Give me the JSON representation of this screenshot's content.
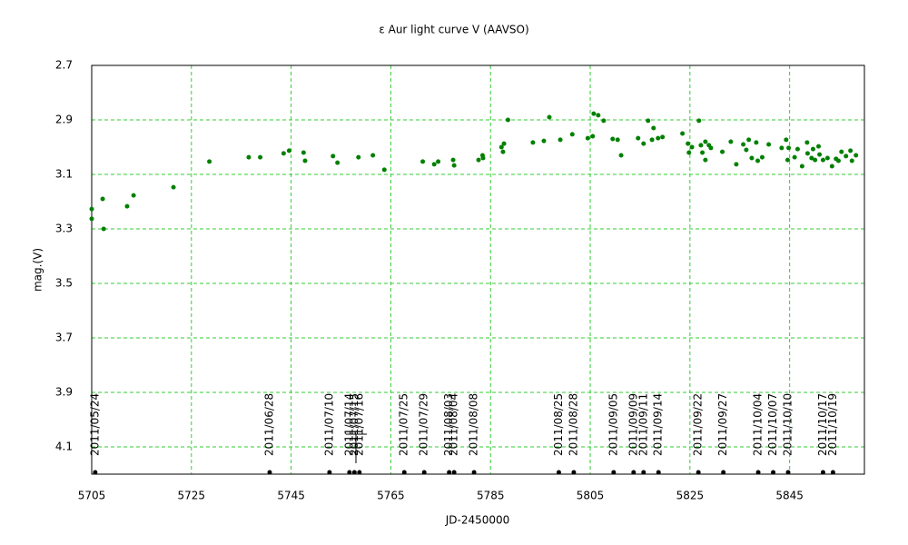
{
  "chart_data": {
    "type": "scatter",
    "title": "ε Aur   light curve  V (AAVSO)",
    "xlabel": "JD-2450000",
    "ylabel": "mag.(V)",
    "x": [
      5705.0,
      5705.0,
      5707.2,
      5707.4,
      5712.1,
      5713.4,
      5721.4,
      5728.6,
      5736.5,
      5738.8,
      5743.5,
      5744.6,
      5747.5,
      5747.8,
      5753.4,
      5754.3,
      5758.5,
      5761.4,
      5763.7,
      5771.4,
      5773.7,
      5774.5,
      5777.5,
      5777.7,
      5782.6,
      5783.4,
      5783.5,
      5787.2,
      5787.5,
      5787.7,
      5788.5,
      5793.5,
      5795.7,
      5796.8,
      5799.0,
      5801.4,
      5804.5,
      5805.5,
      5805.7,
      5806.6,
      5807.7,
      5809.5,
      5810.5,
      5811.2,
      5814.6,
      5815.7,
      5816.6,
      5817.4,
      5817.7,
      5818.6,
      5819.5,
      5823.5,
      5824.6,
      5824.8,
      5825.4,
      5826.8,
      5827.2,
      5827.5,
      5828.1,
      5828.1,
      5828.8,
      5829.2,
      5831.5,
      5833.2,
      5834.3,
      5835.7,
      5836.3,
      5836.8,
      5837.4,
      5838.3,
      5838.6,
      5839.5,
      5840.8,
      5843.4,
      5844.3,
      5844.8,
      5844.6,
      5846.0,
      5846.6,
      5847.5,
      5848.5,
      5848.6,
      5849.4,
      5849.7,
      5850.1,
      5850.8,
      5851.0,
      5851.7,
      5852.6,
      5853.5,
      5854.3,
      5854.8,
      5855.4,
      5856.3,
      5857.2,
      5857.5,
      5858.3
    ],
    "values": [
      3.227,
      3.263,
      3.19,
      3.3,
      3.217,
      3.177,
      3.147,
      3.053,
      3.037,
      3.037,
      3.023,
      3.013,
      3.02,
      3.05,
      3.033,
      3.057,
      3.037,
      3.03,
      3.083,
      3.053,
      3.063,
      3.053,
      3.047,
      3.067,
      3.047,
      3.03,
      3.04,
      3.0,
      3.017,
      2.987,
      2.9,
      2.983,
      2.977,
      2.89,
      2.973,
      2.953,
      2.967,
      2.96,
      2.877,
      2.883,
      2.903,
      2.97,
      2.973,
      3.03,
      2.967,
      2.987,
      2.903,
      2.973,
      2.93,
      2.967,
      2.963,
      2.95,
      2.987,
      3.02,
      3.0,
      2.903,
      2.993,
      3.02,
      3.047,
      2.98,
      2.993,
      3.003,
      3.017,
      2.98,
      3.063,
      2.99,
      3.01,
      2.973,
      3.04,
      2.983,
      3.05,
      3.037,
      2.99,
      3.003,
      2.973,
      3.003,
      3.047,
      3.037,
      3.007,
      3.07,
      2.983,
      3.023,
      3.04,
      3.007,
      3.047,
      2.997,
      3.027,
      3.047,
      3.04,
      3.07,
      3.043,
      3.05,
      3.017,
      3.033,
      3.013,
      3.05,
      3.03
    ],
    "color": "#008000",
    "xlim": [
      5705,
      5860
    ],
    "ylim": [
      2.7,
      4.2
    ],
    "y_inverted": true,
    "xticks": [
      5705,
      5725,
      5745,
      5765,
      5785,
      5805,
      5825,
      5845
    ],
    "yticks": [
      2.7,
      2.9,
      3.1,
      3.3,
      3.5,
      3.7,
      3.9,
      4.1
    ],
    "grid": true,
    "grid_color": "#33cc33",
    "annotations": [
      {
        "label": "2011/05/24",
        "x": 5705.7
      },
      {
        "label": "2011/06/28",
        "x": 5740.7
      },
      {
        "label": "2011/07/10",
        "x": 5752.7
      },
      {
        "label": "2011/07/14",
        "x": 5756.7
      },
      {
        "label": "2011/07/15",
        "x": 5757.7
      },
      {
        "label": "2011/07/16",
        "x": 5758.7
      },
      {
        "label": "2011/07/25",
        "x": 5767.7
      },
      {
        "label": "2011/07/29",
        "x": 5771.7
      },
      {
        "label": "2011/08/03",
        "x": 5776.7
      },
      {
        "label": "2011/08/04",
        "x": 5777.7
      },
      {
        "label": "2011/08/08",
        "x": 5781.7
      },
      {
        "label": "2011/08/25",
        "x": 5798.7
      },
      {
        "label": "2011/08/28",
        "x": 5801.7
      },
      {
        "label": "2011/09/05",
        "x": 5809.7
      },
      {
        "label": "2011/09/09",
        "x": 5813.7
      },
      {
        "label": "2011/09/11",
        "x": 5815.7
      },
      {
        "label": "2011/09/14",
        "x": 5818.7
      },
      {
        "label": "2011/09/22",
        "x": 5826.7
      },
      {
        "label": "2011/09/27",
        "x": 5831.7
      },
      {
        "label": "2011/10/04",
        "x": 5838.7
      },
      {
        "label": "2011/10/07",
        "x": 5841.7
      },
      {
        "label": "2011/10/10",
        "x": 5844.7
      },
      {
        "label": "2011/10/17",
        "x": 5851.7
      },
      {
        "label": "2011/10/19",
        "x": 5853.7
      }
    ],
    "annotation_color": "#000000"
  }
}
